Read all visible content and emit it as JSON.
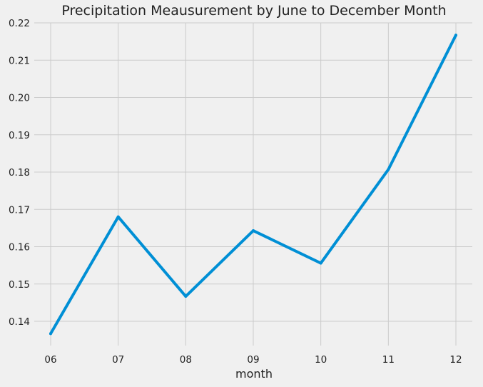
{
  "chart_data": {
    "type": "line",
    "title": "Precipitation Meausurement by June to December Month",
    "xlabel": "month",
    "ylabel": "",
    "categories": [
      "06",
      "07",
      "08",
      "09",
      "10",
      "11",
      "12"
    ],
    "series": [
      {
        "values": [
          0.1367,
          0.168,
          0.1467,
          0.1643,
          0.1556,
          0.1807,
          0.2167
        ]
      }
    ],
    "yticks": [
      "0.14",
      "0.15",
      "0.16",
      "0.17",
      "0.18",
      "0.19",
      "0.20",
      "0.21",
      "0.22"
    ],
    "ylim": [
      0.1335,
      0.22
    ],
    "grid": true,
    "colors": {
      "background": "#f0f0f0",
      "grid": "#cbcbcb",
      "line": "#008fd5",
      "text": "#222222"
    }
  }
}
